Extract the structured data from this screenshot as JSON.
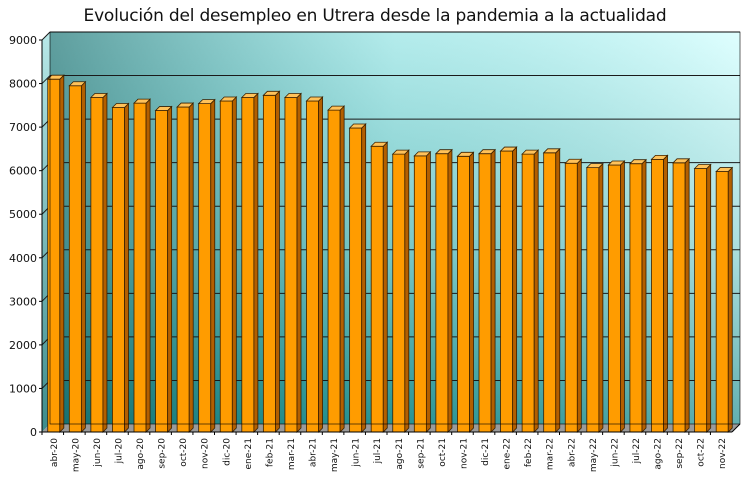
{
  "chart_data": {
    "type": "bar",
    "title": "Evolución del desempleo en Utrera desde la pandemia a la actualidad",
    "xlabel": "",
    "ylabel": "",
    "ylim": [
      0,
      9000
    ],
    "yticks": [
      "0",
      "1000",
      "2000",
      "3000",
      "4000",
      "5000",
      "6000",
      "7000",
      "8000",
      "9000"
    ],
    "grid": true,
    "categories": [
      "abr-20",
      "may-20",
      "jun-20",
      "jul-20",
      "ago-20",
      "sep-20",
      "oct-20",
      "nov-20",
      "dic-20",
      "ene-21",
      "feb-21",
      "mar-21",
      "abr-21",
      "may-21",
      "jun-21",
      "jul-21",
      "ago-21",
      "sep-21",
      "oct-21",
      "nov-21",
      "dic-21",
      "ene-22",
      "feb-22",
      "mar-22",
      "abr-22",
      "may-22",
      "jun-22",
      "jul-22",
      "ago-22",
      "sep-22",
      "oct-22",
      "nov-22"
    ],
    "values": [
      8100,
      7950,
      7680,
      7450,
      7550,
      7380,
      7460,
      7540,
      7600,
      7680,
      7730,
      7680,
      7600,
      7390,
      6980,
      6560,
      6380,
      6340,
      6390,
      6330,
      6390,
      6450,
      6380,
      6410,
      6170,
      6070,
      6130,
      6160,
      6260,
      6180,
      6050,
      5980
    ],
    "colors": {
      "bar_front": "#ff9c00",
      "bar_side": "#b35f00",
      "bar_top": "#ffc25a",
      "plot_top": "#ccffff",
      "plot_bottom_left": "#006b6b"
    }
  }
}
